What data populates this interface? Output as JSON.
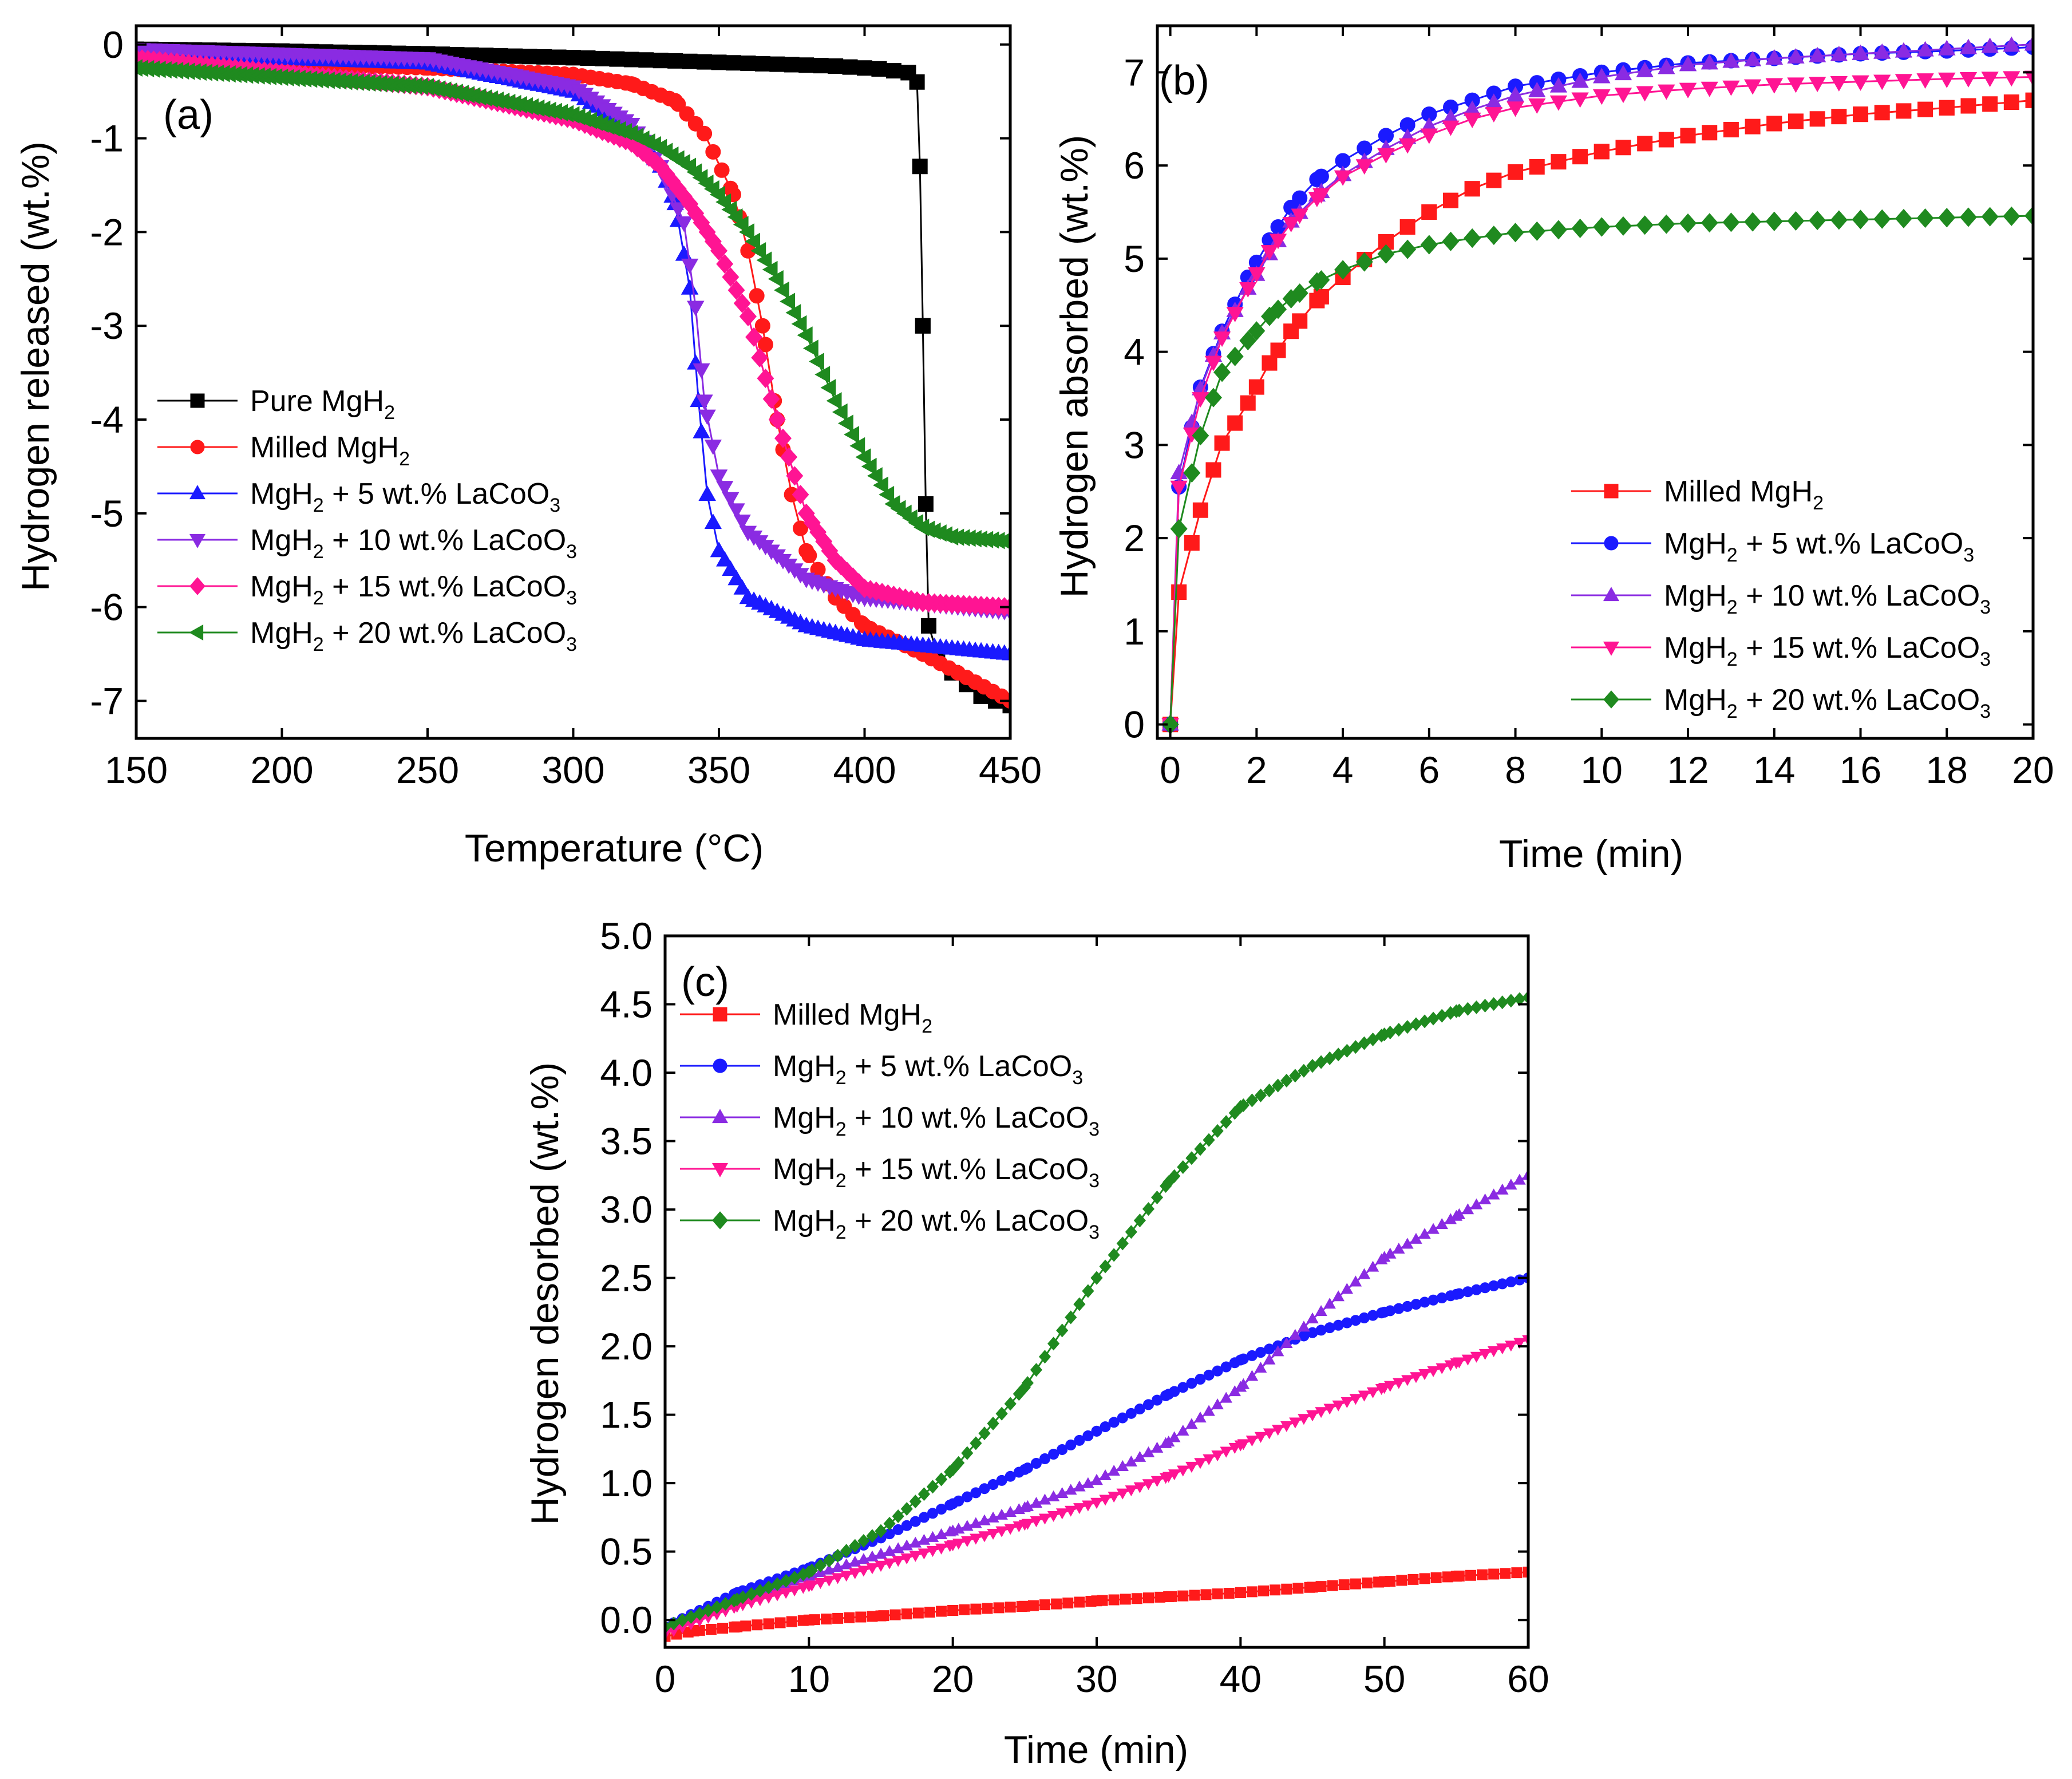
{
  "colors": {
    "black": "#000000",
    "red": "#ff1a1a",
    "blue": "#1a1aff",
    "purple": "#8a2be2",
    "pink": "#ff1493",
    "green": "#1f8a1f"
  },
  "chart_data": [
    {
      "panel": "(a)",
      "type": "line",
      "xlabel": "Temperature (°C)",
      "ylabel": "Hydrogen released (wt.%)",
      "xlim": [
        150,
        450
      ],
      "ylim": [
        -7.4,
        0.2
      ],
      "xticks": [
        "150",
        "200",
        "250",
        "300",
        "350",
        "400",
        "450"
      ],
      "yticks": [
        "0",
        "-1",
        "-2",
        "-3",
        "-4",
        "-5",
        "-6",
        "-7"
      ],
      "legend": [
        {
          "main": "Pure MgH",
          "sub": "2",
          "rest": ""
        },
        {
          "main": "Milled MgH",
          "sub": "2",
          "rest": ""
        },
        {
          "main": "MgH",
          "sub": "2",
          "rest": " + 5 wt.% LaCoO",
          "sub2": "3"
        },
        {
          "main": "MgH",
          "sub": "2",
          "rest": " + 10 wt.% LaCoO",
          "sub2": "3"
        },
        {
          "main": "MgH",
          "sub": "2",
          "rest": " + 15 wt.% LaCoO",
          "sub2": "3"
        },
        {
          "main": "MgH",
          "sub": "2",
          "rest": " + 20 wt.% LaCoO",
          "sub2": "3"
        }
      ],
      "series": [
        {
          "name": "Pure MgH2",
          "color": "black",
          "marker": "square",
          "step": 5,
          "x": [
            150,
            200,
            250,
            300,
            330,
            360,
            390,
            405,
            415,
            418,
            419,
            420,
            421,
            422,
            425,
            430,
            440,
            450
          ],
          "y": [
            -0.05,
            -0.07,
            -0.1,
            -0.14,
            -0.17,
            -0.2,
            -0.23,
            -0.26,
            -0.3,
            -0.4,
            -1.3,
            -3.0,
            -4.9,
            -6.2,
            -6.5,
            -6.7,
            -6.95,
            -7.05
          ]
        },
        {
          "name": "Milled MgH2",
          "color": "red",
          "marker": "circle",
          "step": 3,
          "x": [
            150,
            250,
            300,
            320,
            335,
            345,
            355,
            360,
            365,
            370,
            375,
            380,
            390,
            400,
            420,
            450
          ],
          "y": [
            -0.15,
            -0.25,
            -0.32,
            -0.42,
            -0.6,
            -0.95,
            -1.6,
            -2.2,
            -3.0,
            -4.0,
            -4.8,
            -5.4,
            -5.9,
            -6.2,
            -6.5,
            -7.0
          ]
        },
        {
          "name": "MgH2 + 5 wt.% LaCoO3",
          "color": "blue",
          "marker": "triangle-up",
          "step": 2,
          "x": [
            150,
            250,
            300,
            320,
            330,
            335,
            340,
            343,
            346,
            350,
            360,
            380,
            400,
            450
          ],
          "y": [
            -0.1,
            -0.2,
            -0.5,
            -0.9,
            -1.3,
            -1.7,
            -2.6,
            -3.8,
            -4.8,
            -5.4,
            -5.9,
            -6.2,
            -6.35,
            -6.5
          ]
        },
        {
          "name": "MgH2 + 10 wt.% LaCoO3",
          "color": "purple",
          "marker": "triangle-down",
          "step": 2,
          "x": [
            150,
            250,
            300,
            320,
            330,
            338,
            342,
            345,
            350,
            360,
            380,
            400,
            450
          ],
          "y": [
            -0.05,
            -0.15,
            -0.45,
            -0.85,
            -1.3,
            -1.9,
            -2.8,
            -3.8,
            -4.6,
            -5.2,
            -5.7,
            -5.9,
            -6.05
          ]
        },
        {
          "name": "MgH2 + 15 wt.% LaCoO3",
          "color": "pink",
          "marker": "diamond",
          "step": 2,
          "x": [
            150,
            250,
            300,
            320,
            330,
            340,
            350,
            360,
            370,
            380,
            390,
            400,
            420,
            450
          ],
          "y": [
            -0.15,
            -0.45,
            -0.8,
            -1.05,
            -1.3,
            -1.7,
            -2.2,
            -2.9,
            -4.0,
            -5.0,
            -5.5,
            -5.8,
            -5.95,
            -6.0
          ]
        },
        {
          "name": "MgH2 + 20 wt.% LaCoO3",
          "color": "green",
          "marker": "triangle-left",
          "step": 2,
          "x": [
            150,
            250,
            300,
            320,
            330,
            340,
            350,
            360,
            370,
            380,
            390,
            400,
            410,
            420,
            430,
            450
          ],
          "y": [
            -0.25,
            -0.45,
            -0.75,
            -0.95,
            -1.1,
            -1.3,
            -1.6,
            -2.0,
            -2.5,
            -3.1,
            -3.8,
            -4.4,
            -4.9,
            -5.15,
            -5.25,
            -5.3
          ]
        }
      ]
    },
    {
      "panel": "(b)",
      "type": "line",
      "xlabel": "Time (min)",
      "ylabel": "Hydrogen absorbed (wt.%)",
      "xlim": [
        -0.3,
        20
      ],
      "ylim": [
        -0.15,
        7.5
      ],
      "xticks": [
        "0",
        "2",
        "4",
        "6",
        "8",
        "10",
        "12",
        "14",
        "16",
        "18",
        "20"
      ],
      "yticks": [
        "0",
        "1",
        "2",
        "3",
        "4",
        "5",
        "6",
        "7"
      ],
      "legend": [
        {
          "main": "Milled MgH",
          "sub": "2",
          "rest": ""
        },
        {
          "main": "MgH",
          "sub": "2",
          "rest": " + 5 wt.% LaCoO",
          "sub2": "3"
        },
        {
          "main": "MgH",
          "sub": "2",
          "rest": " + 10 wt.% LaCoO",
          "sub2": "3"
        },
        {
          "main": "MgH",
          "sub": "2",
          "rest": " + 15 wt.% LaCoO",
          "sub2": "3"
        },
        {
          "main": "MgH",
          "sub": "2",
          "rest": " + 20 wt.% LaCoO",
          "sub2": "3"
        }
      ],
      "series": [
        {
          "name": "Milled MgH2",
          "color": "red",
          "marker": "square",
          "step": 0.5,
          "x": [
            0,
            0.2,
            0.7,
            1.2,
            1.8,
            2.3,
            2.8,
            3.4,
            4.0,
            5,
            6,
            7,
            8,
            10,
            12,
            14,
            16,
            18,
            20
          ],
          "y": [
            0,
            1.42,
            2.3,
            3.02,
            3.45,
            3.88,
            4.22,
            4.55,
            4.8,
            5.18,
            5.5,
            5.75,
            5.93,
            6.15,
            6.32,
            6.45,
            6.55,
            6.62,
            6.7
          ]
        },
        {
          "name": "MgH2 + 5 wt.% LaCoO3",
          "color": "blue",
          "marker": "circle",
          "step": 0.5,
          "x": [
            0,
            0.2,
            0.7,
            1.2,
            1.8,
            2.3,
            2.8,
            3.4,
            4.0,
            5,
            6,
            7,
            8,
            10,
            12,
            14,
            16,
            18,
            20
          ],
          "y": [
            0,
            2.55,
            3.62,
            4.22,
            4.8,
            5.2,
            5.55,
            5.85,
            6.05,
            6.32,
            6.55,
            6.7,
            6.85,
            7.0,
            7.1,
            7.15,
            7.2,
            7.23,
            7.27
          ]
        },
        {
          "name": "MgH2 + 10 wt.% LaCoO3",
          "color": "purple",
          "marker": "triangle-up",
          "step": 0.5,
          "x": [
            0,
            0.2,
            0.7,
            1.2,
            1.8,
            2.3,
            2.8,
            3.4,
            4.0,
            5,
            6,
            7,
            8,
            10,
            12,
            14,
            16,
            18,
            20
          ],
          "y": [
            0,
            2.7,
            3.6,
            4.2,
            4.68,
            5.05,
            5.4,
            5.68,
            5.9,
            6.18,
            6.42,
            6.6,
            6.75,
            6.95,
            7.08,
            7.15,
            7.2,
            7.25,
            7.3
          ]
        },
        {
          "name": "MgH2 + 15 wt.% LaCoO3",
          "color": "pink",
          "marker": "triangle-down",
          "step": 0.5,
          "x": [
            0,
            0.2,
            0.7,
            1.2,
            1.8,
            2.3,
            2.8,
            3.4,
            4.0,
            5,
            6,
            7,
            8,
            10,
            12,
            14,
            16,
            18,
            20
          ],
          "y": [
            0,
            2.55,
            3.5,
            4.15,
            4.68,
            5.08,
            5.38,
            5.65,
            5.88,
            6.12,
            6.33,
            6.5,
            6.62,
            6.75,
            6.82,
            6.87,
            6.9,
            6.93,
            6.95
          ]
        },
        {
          "name": "MgH2 + 20 wt.% LaCoO3",
          "color": "green",
          "marker": "diamond",
          "step": 0.5,
          "x": [
            0,
            0.2,
            0.7,
            1.2,
            1.8,
            2.3,
            2.8,
            3.4,
            4.0,
            5,
            6,
            7,
            8,
            10,
            12,
            14,
            16,
            18,
            20
          ],
          "y": [
            0,
            2.1,
            3.1,
            3.78,
            4.12,
            4.38,
            4.57,
            4.75,
            4.88,
            5.05,
            5.15,
            5.22,
            5.28,
            5.34,
            5.38,
            5.4,
            5.42,
            5.44,
            5.46
          ]
        }
      ]
    },
    {
      "panel": "(c)",
      "type": "line",
      "xlabel": "Time (min)",
      "ylabel": "Hydrogen desorbed (wt.%)",
      "xlim": [
        0,
        60
      ],
      "ylim": [
        -0.2,
        5.0
      ],
      "xticks": [
        "0",
        "10",
        "20",
        "30",
        "40",
        "50",
        "60"
      ],
      "yticks": [
        "0.0",
        "0.5",
        "1.0",
        "1.5",
        "2.0",
        "2.5",
        "3.0",
        "3.5",
        "4.0",
        "4.5",
        "5.0"
      ],
      "legend": [
        {
          "main": "Milled MgH",
          "sub": "2",
          "rest": ""
        },
        {
          "main": "MgH",
          "sub": "2",
          "rest": " + 5 wt.% LaCoO",
          "sub2": "3"
        },
        {
          "main": "MgH",
          "sub": "2",
          "rest": " + 10 wt.% LaCoO",
          "sub2": "3"
        },
        {
          "main": "MgH",
          "sub": "2",
          "rest": " + 15 wt.% LaCoO",
          "sub2": "3"
        },
        {
          "main": "MgH",
          "sub": "2",
          "rest": " + 20 wt.% LaCoO",
          "sub2": "3"
        }
      ],
      "series": [
        {
          "name": "Milled MgH2",
          "color": "red",
          "marker": "square",
          "step": 0.8,
          "x": [
            0,
            2,
            5,
            10,
            15,
            20,
            25,
            30,
            35,
            40,
            45,
            50,
            55,
            60
          ],
          "y": [
            -0.12,
            -0.08,
            -0.05,
            0.0,
            0.03,
            0.07,
            0.1,
            0.14,
            0.17,
            0.2,
            0.24,
            0.28,
            0.32,
            0.35
          ]
        },
        {
          "name": "MgH2 + 5 wt.% LaCoO3",
          "color": "blue",
          "marker": "circle",
          "step": 0.6,
          "x": [
            0,
            5,
            10,
            15,
            20,
            25,
            30,
            35,
            40,
            45,
            50,
            55,
            60
          ],
          "y": [
            -0.05,
            0.2,
            0.38,
            0.6,
            0.85,
            1.1,
            1.38,
            1.65,
            1.9,
            2.1,
            2.25,
            2.38,
            2.5
          ]
        },
        {
          "name": "MgH2 + 10 wt.% LaCoO3",
          "color": "purple",
          "marker": "triangle-up",
          "step": 0.6,
          "x": [
            0,
            5,
            10,
            15,
            20,
            25,
            30,
            35,
            40,
            45,
            50,
            55,
            60
          ],
          "y": [
            -0.05,
            0.15,
            0.32,
            0.48,
            0.65,
            0.82,
            1.02,
            1.3,
            1.7,
            2.2,
            2.65,
            2.95,
            3.25
          ]
        },
        {
          "name": "MgH2 + 15 wt.% LaCoO3",
          "color": "pink",
          "marker": "triangle-down",
          "step": 0.6,
          "x": [
            0,
            5,
            10,
            15,
            20,
            25,
            30,
            35,
            40,
            45,
            50,
            55,
            60
          ],
          "y": [
            -0.1,
            0.1,
            0.25,
            0.4,
            0.55,
            0.7,
            0.86,
            1.05,
            1.28,
            1.5,
            1.7,
            1.88,
            2.05
          ]
        },
        {
          "name": "MgH2 + 20 wt.% LaCoO3",
          "color": "green",
          "marker": "diamond",
          "step": 0.6,
          "x": [
            0,
            5,
            10,
            15,
            20,
            25,
            30,
            35,
            40,
            45,
            50,
            55,
            60
          ],
          "y": [
            -0.05,
            0.15,
            0.35,
            0.65,
            1.1,
            1.7,
            2.5,
            3.2,
            3.75,
            4.05,
            4.28,
            4.45,
            4.55
          ]
        }
      ]
    }
  ]
}
